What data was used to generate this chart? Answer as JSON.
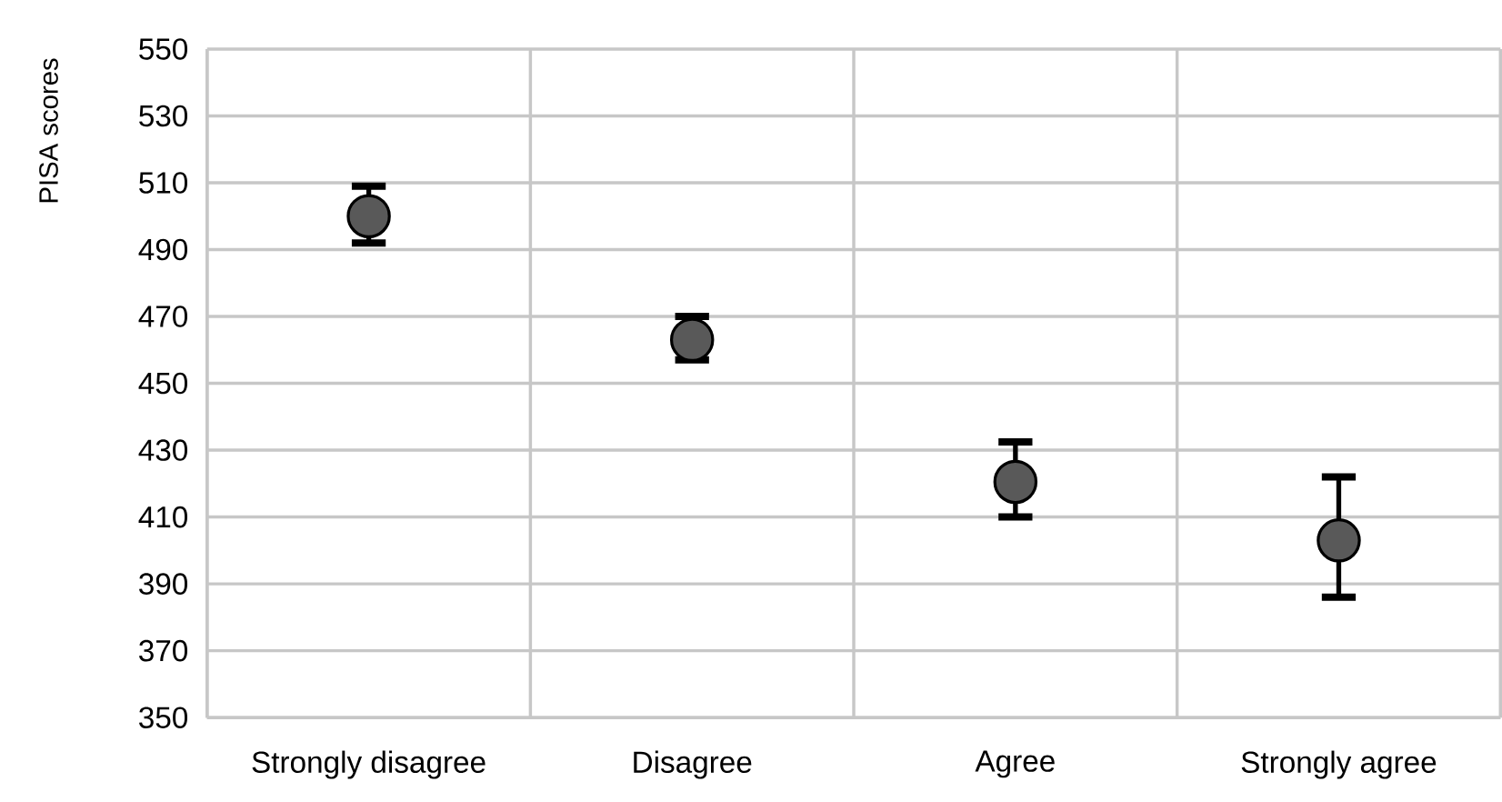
{
  "chart_data": {
    "type": "scatter",
    "ylabel": "PISA scores",
    "categories": [
      "Strongly disagree",
      "Disagree",
      "Agree",
      "Strongly agree"
    ],
    "series": [
      {
        "color": "#595959",
        "values": [
          500,
          463,
          420.5,
          403
        ],
        "errors": [
          [
            492,
            509
          ],
          [
            457,
            470
          ],
          [
            410,
            432.5
          ],
          [
            386,
            422
          ]
        ]
      }
    ],
    "ylim": [
      350,
      550
    ],
    "yticks": [
      350,
      370,
      390,
      410,
      430,
      450,
      470,
      490,
      510,
      530,
      550
    ],
    "grid": true,
    "marker": "circle"
  }
}
